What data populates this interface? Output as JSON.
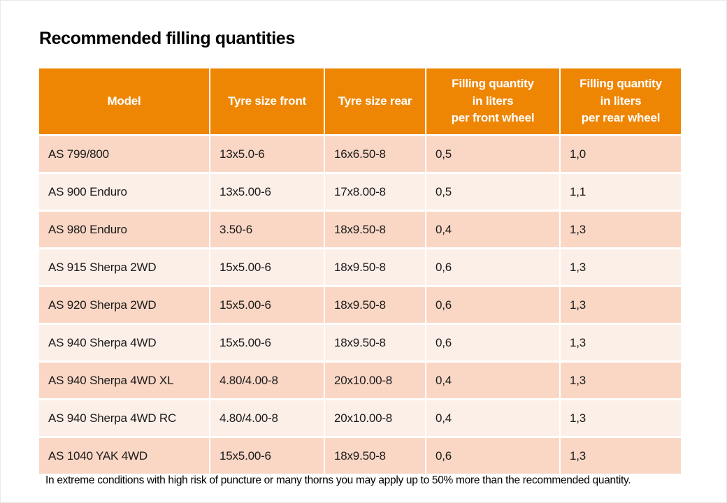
{
  "page": {
    "title": "Recommended filling quantities",
    "footnote": "In extreme conditions with high risk of puncture or many thorns you may apply up to 50% more than the recommended quantity."
  },
  "table": {
    "columns": [
      "Model",
      "Tyre size front",
      "Tyre size rear",
      "Filling quantity\nin liters\nper front wheel",
      "Filling quantity\nin liters\nper rear wheel"
    ],
    "rows": [
      [
        "AS 799/800",
        "13x5.0-6",
        "16x6.50-8",
        "0,5",
        "1,0"
      ],
      [
        "AS 900 Enduro",
        "13x5.00-6",
        "17x8.00-8",
        "0,5",
        "1,1"
      ],
      [
        "AS 980 Enduro",
        "3.50-6",
        "18x9.50-8",
        "0,4",
        "1,3"
      ],
      [
        "AS 915 Sherpa 2WD",
        "15x5.00-6",
        "18x9.50-8",
        "0,6",
        "1,3"
      ],
      [
        "AS 920 Sherpa 2WD",
        "15x5.00-6",
        "18x9.50-8",
        "0,6",
        "1,3"
      ],
      [
        "AS 940 Sherpa 4WD",
        "15x5.00-6",
        "18x9.50-8",
        "0,6",
        "1,3"
      ],
      [
        "AS 940 Sherpa 4WD XL",
        "4.80/4.00-8",
        "20x10.00-8",
        "0,4",
        "1,3"
      ],
      [
        "AS 940 Sherpa 4WD RC",
        "4.80/4.00-8",
        "20x10.00-8",
        "0,4",
        "1,3"
      ],
      [
        "AS 1040 YAK 4WD",
        "15x5.00-6",
        "18x9.50-8",
        "0,6",
        "1,3"
      ]
    ],
    "colors": {
      "header_bg": "#EE8604",
      "header_text": "#FFFFFF",
      "row_odd_bg": "#FAD7C5",
      "row_even_bg": "#FCEFE8"
    }
  }
}
